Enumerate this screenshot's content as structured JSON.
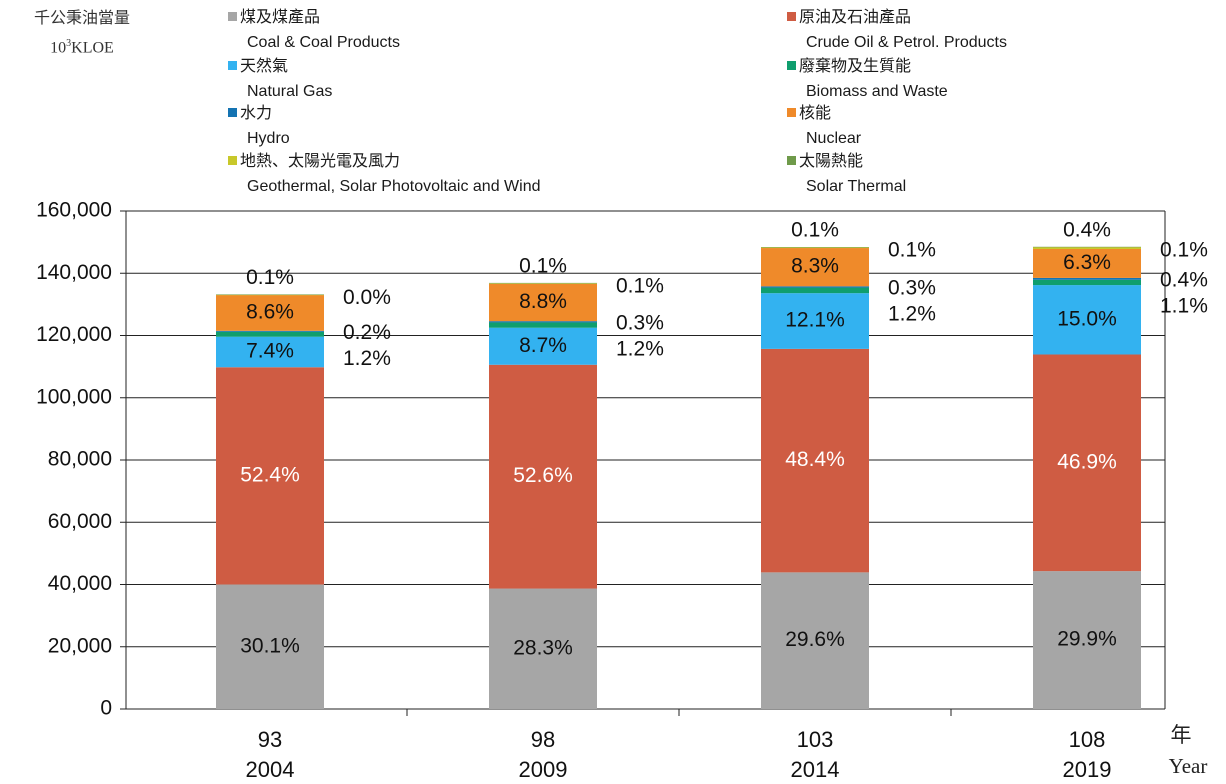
{
  "unit_zh": "千公秉油當量",
  "unit_en_base": "10",
  "unit_en_exp": "3",
  "unit_en_suffix": "KLOE",
  "legend": [
    {
      "zh": "煤及煤產品",
      "en": "Coal & Coal Products",
      "color": "#a6a6a6"
    },
    {
      "zh": "原油及石油產品",
      "en": "Crude Oil & Petrol. Products",
      "color": "#cf5c43"
    },
    {
      "zh": "天然氣",
      "en": "Natural Gas",
      "color": "#33b2f0"
    },
    {
      "zh": "廢棄物及生質能",
      "en": "Biomass and Waste",
      "color": "#0f9e6e"
    },
    {
      "zh": "水力",
      "en": "Hydro",
      "color": "#1473b2"
    },
    {
      "zh": "核能",
      "en": "Nuclear",
      "color": "#ef8a2a"
    },
    {
      "zh": "地熱、太陽光電及風力",
      "en": "Geothermal, Solar Photovoltaic and Wind",
      "color": "#c8c82a"
    },
    {
      "zh": "太陽熱能",
      "en": "Solar Thermal",
      "color": "#6f9a4a"
    }
  ],
  "x_unit_zh": "年",
  "x_unit_en": "Year",
  "chart_data": {
    "type": "bar",
    "stacked": true,
    "categories": [
      "93",
      "98",
      "103",
      "108"
    ],
    "categories_secondary": [
      "2004",
      "2009",
      "2014",
      "2019"
    ],
    "ylim": [
      0,
      160000
    ],
    "yticks": [
      0,
      20000,
      40000,
      60000,
      80000,
      100000,
      120000,
      140000,
      160000
    ],
    "ytick_labels": [
      "0",
      "20,000",
      "40,000",
      "60,000",
      "80,000",
      "100,000",
      "120,000",
      "140,000",
      "160,000"
    ],
    "series": [
      {
        "name": "煤及煤產品",
        "color": "#a6a6a6",
        "values": [
          40000,
          38700,
          43900,
          44300
        ],
        "labels": [
          "30.1%",
          "28.3%",
          "29.6%",
          "29.9%"
        ]
      },
      {
        "name": "原油及石油產品",
        "color": "#cf5c43",
        "values": [
          69800,
          71900,
          71800,
          69600
        ],
        "labels": [
          "52.4%",
          "52.6%",
          "48.4%",
          "46.9%"
        ]
      },
      {
        "name": "天然氣",
        "color": "#33b2f0",
        "values": [
          9800,
          11900,
          17900,
          22300
        ],
        "labels": [
          "7.4%",
          "8.7%",
          "12.1%",
          "15.0%"
        ]
      },
      {
        "name": "廢棄物及生質能",
        "color": "#0f9e6e",
        "values": [
          1600,
          1700,
          1800,
          1700
        ],
        "labels": [
          "1.2%",
          "1.2%",
          "1.2%",
          "1.1%"
        ]
      },
      {
        "name": "水力",
        "color": "#1473b2",
        "values": [
          300,
          400,
          400,
          600
        ],
        "labels": [
          "0.2%",
          "0.3%",
          "0.3%",
          "0.4%"
        ]
      },
      {
        "name": "核能",
        "color": "#ef8a2a",
        "values": [
          11500,
          12000,
          12300,
          9300
        ],
        "labels": [
          "8.6%",
          "8.8%",
          "8.3%",
          "6.3%"
        ]
      },
      {
        "name": "地熱、太陽光電及風力",
        "color": "#c8c82a",
        "values": [
          100,
          200,
          200,
          600
        ],
        "labels": [
          "0.1%",
          "0.1%",
          "0.1%",
          "0.4%"
        ]
      },
      {
        "name": "太陽熱能",
        "color": "#6f9a4a",
        "values": [
          100,
          100,
          100,
          100
        ],
        "labels": [
          "0.0%",
          "0.1%",
          "0.1%",
          "0.1%"
        ]
      }
    ]
  }
}
